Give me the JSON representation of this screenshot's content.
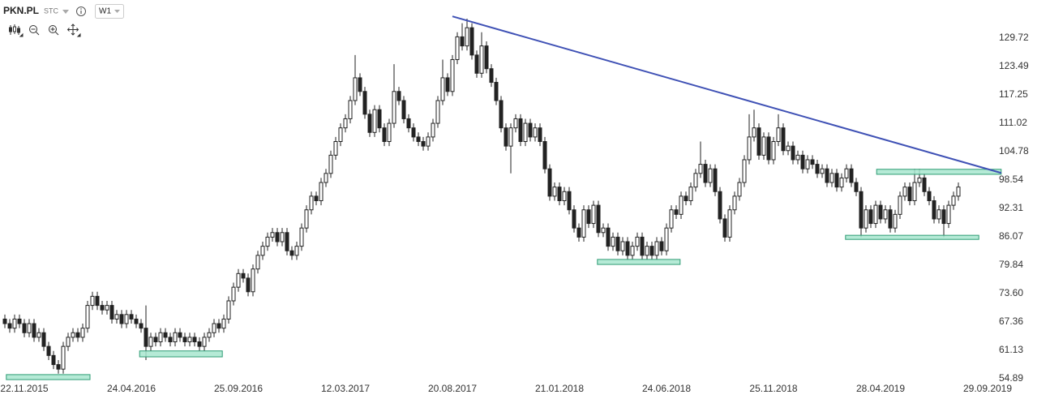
{
  "header": {
    "symbol": "PKN.PL",
    "instrument_type": "STC",
    "interval": "W1"
  },
  "chart_data": {
    "type": "candlestick",
    "categories": [
      null,
      null,
      null,
      null,
      "22.11.2015",
      null,
      null,
      null,
      null,
      null,
      null,
      null,
      null,
      null,
      null,
      null,
      null,
      null,
      null,
      null,
      null,
      null,
      null,
      null,
      null,
      null,
      "24.04.2016",
      null,
      null,
      null,
      null,
      null,
      null,
      null,
      null,
      null,
      null,
      null,
      null,
      null,
      null,
      null,
      null,
      null,
      null,
      null,
      null,
      null,
      "25.09.2016",
      null,
      null,
      null,
      null,
      null,
      null,
      null,
      null,
      null,
      null,
      null,
      null,
      null,
      null,
      null,
      null,
      null,
      null,
      null,
      null,
      null,
      "12.03.2017",
      null,
      null,
      null,
      null,
      null,
      null,
      null,
      null,
      null,
      null,
      null,
      null,
      null,
      null,
      null,
      null,
      null,
      null,
      null,
      null,
      null,
      "20.08.2017",
      null,
      null,
      null,
      null,
      null,
      null,
      null,
      null,
      null,
      null,
      null,
      null,
      null,
      null,
      null,
      null,
      null,
      null,
      null,
      null,
      null,
      "21.01.2018",
      null,
      null,
      null,
      null,
      null,
      null,
      null,
      null,
      null,
      null,
      null,
      null,
      null,
      null,
      null,
      null,
      null,
      null,
      null,
      null,
      null,
      "24.06.2018",
      null,
      null,
      null,
      null,
      null,
      null,
      null,
      null,
      null,
      null,
      null,
      null,
      null,
      null,
      null,
      null,
      null,
      null,
      null,
      null,
      null,
      "25.11.2018",
      null,
      null,
      null,
      null,
      null,
      null,
      null,
      null,
      null,
      null,
      null,
      null,
      null,
      null,
      null,
      null,
      null,
      null,
      null,
      null,
      null,
      "28.04.2019",
      null,
      null,
      null,
      null,
      null,
      null,
      null,
      null,
      null,
      null,
      null,
      null,
      null,
      null,
      null,
      null,
      null,
      null,
      null,
      null,
      null,
      "29.09.2019",
      null
    ],
    "candles": [
      [
        68,
        69,
        66,
        67
      ],
      [
        67,
        68,
        65,
        66
      ],
      [
        66,
        69,
        65,
        68
      ],
      [
        68,
        69,
        66,
        67
      ],
      [
        67,
        68,
        64,
        65
      ],
      [
        65,
        68,
        64,
        67
      ],
      [
        67,
        68,
        63,
        64
      ],
      [
        64,
        66,
        63,
        65
      ],
      [
        65,
        66,
        61,
        62
      ],
      [
        62,
        63,
        59,
        60
      ],
      [
        60,
        61,
        57,
        58
      ],
      [
        58,
        59,
        56,
        57
      ],
      [
        57,
        63,
        56,
        62
      ],
      [
        62,
        65,
        61,
        64
      ],
      [
        64,
        66,
        63,
        65
      ],
      [
        65,
        66,
        63,
        64
      ],
      [
        64,
        67,
        63,
        66
      ],
      [
        66,
        72,
        65,
        71
      ],
      [
        71,
        74,
        70,
        73
      ],
      [
        73,
        74,
        70,
        71
      ],
      [
        71,
        72,
        69,
        70
      ],
      [
        70,
        72,
        69,
        71
      ],
      [
        71,
        72,
        67,
        68
      ],
      [
        68,
        70,
        67,
        69
      ],
      [
        69,
        70,
        66,
        67
      ],
      [
        67,
        70,
        66,
        69
      ],
      [
        69,
        70,
        67,
        68
      ],
      [
        68,
        69,
        66,
        67
      ],
      [
        67,
        68,
        65,
        66
      ],
      [
        66,
        71,
        59,
        62
      ],
      [
        62,
        65,
        61,
        64
      ],
      [
        64,
        65,
        62,
        63
      ],
      [
        63,
        66,
        62,
        65
      ],
      [
        65,
        66,
        63,
        64
      ],
      [
        64,
        65,
        62,
        63
      ],
      [
        63,
        66,
        62,
        65
      ],
      [
        65,
        66,
        63,
        64
      ],
      [
        64,
        65,
        62,
        63
      ],
      [
        63,
        65,
        62,
        64
      ],
      [
        64,
        65,
        62,
        63
      ],
      [
        63,
        64,
        61,
        62
      ],
      [
        62,
        65,
        61,
        64
      ],
      [
        64,
        66,
        63,
        65
      ],
      [
        65,
        68,
        64,
        67
      ],
      [
        67,
        68,
        65,
        66
      ],
      [
        66,
        69,
        65,
        68
      ],
      [
        68,
        73,
        67,
        72
      ],
      [
        72,
        76,
        71,
        75
      ],
      [
        75,
        79,
        74,
        78
      ],
      [
        78,
        79,
        76,
        77
      ],
      [
        77,
        78,
        73,
        74
      ],
      [
        74,
        80,
        73,
        79
      ],
      [
        79,
        83,
        78,
        82
      ],
      [
        82,
        85,
        81,
        84
      ],
      [
        84,
        87,
        83,
        86
      ],
      [
        86,
        88,
        85,
        87
      ],
      [
        87,
        88,
        84,
        85
      ],
      [
        85,
        88,
        84,
        87
      ],
      [
        87,
        88,
        82,
        83
      ],
      [
        83,
        84,
        81,
        82
      ],
      [
        82,
        85,
        81,
        84
      ],
      [
        84,
        89,
        83,
        88
      ],
      [
        88,
        93,
        87,
        92
      ],
      [
        92,
        96,
        91,
        95
      ],
      [
        95,
        96,
        93,
        94
      ],
      [
        94,
        99,
        93,
        98
      ],
      [
        98,
        101,
        97,
        100
      ],
      [
        100,
        105,
        99,
        104
      ],
      [
        104,
        108,
        103,
        107
      ],
      [
        107,
        111,
        106,
        110
      ],
      [
        110,
        113,
        109,
        112
      ],
      [
        112,
        117,
        111,
        116
      ],
      [
        116,
        126,
        115,
        121
      ],
      [
        121,
        122,
        117,
        118
      ],
      [
        118,
        119,
        112,
        113
      ],
      [
        113,
        114,
        108,
        109
      ],
      [
        109,
        115,
        108,
        114
      ],
      [
        114,
        115,
        109,
        110
      ],
      [
        110,
        111,
        106,
        107
      ],
      [
        107,
        112,
        106,
        111
      ],
      [
        111,
        124,
        110,
        118
      ],
      [
        118,
        119,
        115,
        116
      ],
      [
        116,
        117,
        111,
        112
      ],
      [
        112,
        113,
        109,
        110
      ],
      [
        110,
        111,
        107,
        108
      ],
      [
        108,
        109,
        106,
        107
      ],
      [
        107,
        108,
        105,
        106
      ],
      [
        106,
        109,
        105,
        108
      ],
      [
        108,
        112,
        107,
        111
      ],
      [
        111,
        117,
        110,
        116
      ],
      [
        116,
        125,
        115,
        121
      ],
      [
        121,
        122,
        117,
        118
      ],
      [
        118,
        126,
        117,
        125
      ],
      [
        125,
        131,
        124,
        130
      ],
      [
        130,
        133,
        127,
        128
      ],
      [
        128,
        134,
        127,
        132
      ],
      [
        132,
        133,
        125,
        126
      ],
      [
        126,
        127,
        121,
        122
      ],
      [
        122,
        131,
        121,
        128
      ],
      [
        128,
        129,
        122,
        123
      ],
      [
        123,
        124,
        119,
        120
      ],
      [
        120,
        121,
        115,
        116
      ],
      [
        116,
        117,
        109,
        110
      ],
      [
        110,
        111,
        105,
        106
      ],
      [
        106,
        111,
        100,
        110
      ],
      [
        110,
        113,
        109,
        112
      ],
      [
        112,
        113,
        106,
        107
      ],
      [
        107,
        112,
        106,
        111
      ],
      [
        111,
        112,
        107,
        108
      ],
      [
        108,
        111,
        107,
        110
      ],
      [
        110,
        111,
        106,
        107
      ],
      [
        107,
        108,
        100,
        101
      ],
      [
        101,
        102,
        94,
        95
      ],
      [
        95,
        98,
        94,
        97
      ],
      [
        97,
        98,
        93,
        94
      ],
      [
        94,
        97,
        93,
        96
      ],
      [
        96,
        97,
        91,
        92
      ],
      [
        92,
        93,
        87,
        88
      ],
      [
        88,
        89,
        85,
        86
      ],
      [
        86,
        93,
        85,
        92
      ],
      [
        92,
        93,
        88,
        89
      ],
      [
        89,
        94,
        88,
        93
      ],
      [
        93,
        94,
        86,
        87
      ],
      [
        87,
        89,
        86,
        88
      ],
      [
        88,
        89,
        83,
        84
      ],
      [
        84,
        87,
        83,
        86
      ],
      [
        86,
        87,
        82,
        83
      ],
      [
        83,
        86,
        82,
        85
      ],
      [
        85,
        86,
        81,
        82
      ],
      [
        82,
        85,
        81,
        84
      ],
      [
        84,
        87,
        83,
        86
      ],
      [
        86,
        87,
        81,
        82
      ],
      [
        82,
        85,
        81,
        84
      ],
      [
        84,
        85,
        81,
        82
      ],
      [
        82,
        86,
        81,
        85
      ],
      [
        85,
        86,
        82,
        83
      ],
      [
        83,
        89,
        82,
        88
      ],
      [
        88,
        93,
        87,
        92
      ],
      [
        92,
        93,
        90,
        91
      ],
      [
        91,
        96,
        90,
        95
      ],
      [
        95,
        96,
        93,
        94
      ],
      [
        94,
        98,
        93,
        97
      ],
      [
        97,
        101,
        96,
        100
      ],
      [
        100,
        107,
        99,
        102
      ],
      [
        102,
        103,
        97,
        98
      ],
      [
        98,
        102,
        97,
        101
      ],
      [
        101,
        102,
        95,
        96
      ],
      [
        96,
        97,
        89,
        90
      ],
      [
        90,
        91,
        85,
        86
      ],
      [
        86,
        93,
        85,
        92
      ],
      [
        92,
        96,
        91,
        95
      ],
      [
        95,
        99,
        94,
        98
      ],
      [
        98,
        104,
        97,
        103
      ],
      [
        103,
        113,
        102,
        108
      ],
      [
        108,
        114,
        107,
        110
      ],
      [
        110,
        111,
        103,
        104
      ],
      [
        104,
        109,
        103,
        108
      ],
      [
        108,
        109,
        102,
        103
      ],
      [
        103,
        108,
        102,
        107
      ],
      [
        107,
        113,
        106,
        110
      ],
      [
        110,
        111,
        104,
        105
      ],
      [
        105,
        107,
        104,
        106
      ],
      [
        106,
        107,
        102,
        103
      ],
      [
        103,
        105,
        102,
        104
      ],
      [
        104,
        105,
        100,
        101
      ],
      [
        101,
        104,
        100,
        103
      ],
      [
        103,
        104,
        101,
        102
      ],
      [
        102,
        103,
        99,
        100
      ],
      [
        100,
        102,
        99,
        101
      ],
      [
        101,
        102,
        97,
        98
      ],
      [
        98,
        101,
        97,
        100
      ],
      [
        100,
        101,
        96,
        97
      ],
      [
        97,
        100,
        96,
        99
      ],
      [
        99,
        102,
        98,
        101
      ],
      [
        101,
        102,
        97,
        98
      ],
      [
        98,
        99,
        95,
        96
      ],
      [
        96,
        97,
        86,
        88
      ],
      [
        88,
        93,
        87,
        92
      ],
      [
        92,
        93,
        88,
        89
      ],
      [
        89,
        94,
        88,
        93
      ],
      [
        93,
        94,
        89,
        90
      ],
      [
        90,
        93,
        89,
        92
      ],
      [
        92,
        93,
        87,
        88
      ],
      [
        88,
        92,
        87,
        91
      ],
      [
        91,
        96,
        90,
        95
      ],
      [
        95,
        98,
        94,
        97
      ],
      [
        97,
        98,
        93,
        94
      ],
      [
        94,
        101,
        93,
        98
      ],
      [
        98,
        101,
        97,
        99
      ],
      [
        99,
        100,
        95,
        96
      ],
      [
        96,
        97,
        93,
        94
      ],
      [
        94,
        95,
        89,
        90
      ],
      [
        90,
        93,
        89,
        92
      ],
      [
        92,
        93,
        86,
        89
      ],
      [
        89,
        94,
        88,
        93
      ],
      [
        93,
        96,
        92,
        95
      ],
      [
        95,
        98,
        94,
        97
      ],
      null,
      null,
      null,
      null,
      null,
      null,
      null
    ],
    "up_color": "#ffffff",
    "down_color": "#222222",
    "wick_color": "#222222",
    "ylim": [
      54.36,
      138.09
    ],
    "yticks": [
      129.72,
      123.49,
      117.25,
      111.02,
      104.78,
      98.54,
      92.31,
      86.07,
      79.84,
      {
        "value": 73.6,
        "label": "73.60"
      },
      67.36,
      61.13,
      54.89
    ],
    "grid": false,
    "trend_line": {
      "x": [
        92,
        204.8
      ],
      "y": [
        134.5,
        100.1
      ],
      "color": "#3f51b5"
    },
    "zones": [
      {
        "x": [
          0.3,
          17.5
        ],
        "y": [
          54.7,
          55.8
        ]
      },
      {
        "x": [
          27.7,
          44.7
        ],
        "y": [
          59.7,
          61.0
        ]
      },
      {
        "x": [
          121.8,
          138.8
        ],
        "y": [
          80.0,
          81.1
        ]
      },
      {
        "x": [
          172.8,
          200.2
        ],
        "y": [
          85.5,
          86.4
        ]
      },
      {
        "x": [
          179.2,
          204.8
        ],
        "y": [
          99.8,
          100.9
        ]
      }
    ],
    "zone_fill": "#a8e6cf",
    "zone_stroke": "#2e9c74"
  }
}
